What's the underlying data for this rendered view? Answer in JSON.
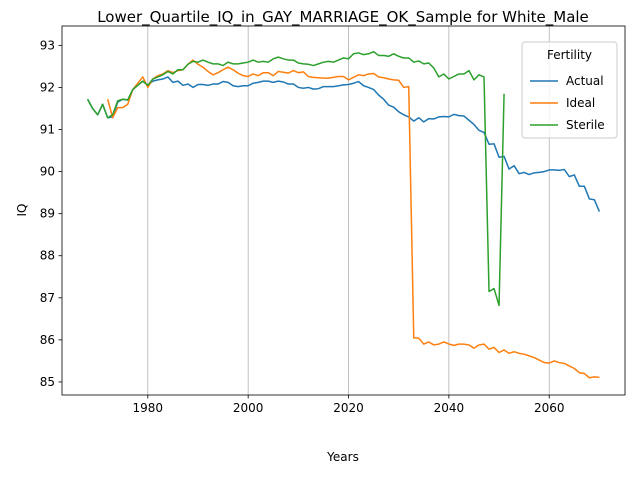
{
  "chart_data": {
    "type": "line",
    "title": "Lower_Quartile_IQ_in_GAY_MARRIAGE_OK_Sample for White_Male",
    "x_label": "Years",
    "y_label": "IQ",
    "x": [
      1968,
      1969,
      1970,
      1971,
      1972,
      1973,
      1974,
      1975,
      1976,
      1977,
      1978,
      1979,
      1980,
      1981,
      1982,
      1983,
      1984,
      1985,
      1986,
      1987,
      1988,
      1989,
      1990,
      1991,
      1992,
      1993,
      1994,
      1995,
      1996,
      1997,
      1998,
      1999,
      2000,
      2001,
      2002,
      2003,
      2004,
      2005,
      2006,
      2007,
      2008,
      2009,
      2010,
      2011,
      2012,
      2013,
      2014,
      2015,
      2016,
      2017,
      2018,
      2019,
      2020,
      2021,
      2022,
      2023,
      2024,
      2025,
      2026,
      2027,
      2028,
      2029,
      2030,
      2031,
      2032,
      2033,
      2034,
      2035,
      2036,
      2037,
      2038,
      2039,
      2040,
      2041,
      2042,
      2043,
      2044,
      2045,
      2046,
      2047,
      2048,
      2049,
      2050,
      2051,
      2052,
      2053,
      2054,
      2055,
      2056,
      2057,
      2058,
      2059,
      2060,
      2061,
      2062,
      2063,
      2064,
      2065,
      2066,
      2067,
      2068,
      2069,
      2070
    ],
    "series": [
      {
        "name": "Actual",
        "color": "#1f77b4",
        "values": [
          91.72,
          91.5,
          91.35,
          91.6,
          91.28,
          91.3,
          91.65,
          91.72,
          91.7,
          91.95,
          92.05,
          92.15,
          92.05,
          92.15,
          92.18,
          92.2,
          92.25,
          92.12,
          92.15,
          92.05,
          92.08,
          92.0,
          92.07,
          92.07,
          92.05,
          92.08,
          92.08,
          92.14,
          92.12,
          92.04,
          92.02,
          92.04,
          92.04,
          92.1,
          92.12,
          92.15,
          92.15,
          92.12,
          92.15,
          92.13,
          92.08,
          92.08,
          92.0,
          91.98,
          92.0,
          91.96,
          91.97,
          92.02,
          92.02,
          92.02,
          92.04,
          92.06,
          92.07,
          92.1,
          92.14,
          92.04,
          92.0,
          91.95,
          91.82,
          91.72,
          91.58,
          91.53,
          91.42,
          91.35,
          91.3,
          91.2,
          91.28,
          91.18,
          91.26,
          91.25,
          91.3,
          91.31,
          91.3,
          91.36,
          91.33,
          91.32,
          91.22,
          91.12,
          90.98,
          90.93,
          90.65,
          90.66,
          90.34,
          90.36,
          90.06,
          90.14,
          89.95,
          89.98,
          89.93,
          89.97,
          89.98,
          90.0,
          90.04,
          90.04,
          90.03,
          90.05,
          89.88,
          89.92,
          89.65,
          89.65,
          89.35,
          89.33,
          89.05
        ]
      },
      {
        "name": "Ideal",
        "color": "#ff7f0e",
        "values": [
          null,
          null,
          null,
          null,
          91.72,
          91.28,
          91.52,
          91.52,
          91.6,
          91.95,
          92.1,
          92.25,
          92.0,
          92.2,
          92.28,
          92.32,
          92.4,
          92.35,
          92.4,
          92.42,
          92.55,
          92.65,
          92.55,
          92.48,
          92.38,
          92.3,
          92.35,
          92.42,
          92.48,
          92.42,
          92.34,
          92.28,
          92.26,
          92.32,
          92.28,
          92.35,
          92.35,
          92.28,
          92.38,
          92.36,
          92.34,
          92.4,
          92.35,
          92.37,
          92.26,
          92.24,
          92.23,
          92.22,
          92.22,
          92.24,
          92.26,
          92.26,
          92.18,
          92.24,
          92.3,
          92.28,
          92.32,
          92.33,
          92.25,
          92.23,
          92.2,
          92.18,
          92.17,
          92.0,
          92.02,
          86.05,
          86.04,
          85.9,
          85.95,
          85.88,
          85.9,
          85.95,
          85.9,
          85.87,
          85.9,
          85.9,
          85.88,
          85.8,
          85.88,
          85.9,
          85.78,
          85.82,
          85.7,
          85.76,
          85.68,
          85.72,
          85.68,
          85.66,
          85.62,
          85.58,
          85.52,
          85.46,
          85.45,
          85.5,
          85.46,
          85.44,
          85.38,
          85.32,
          85.22,
          85.2,
          85.1,
          85.12,
          85.11
        ]
      },
      {
        "name": "Sterile",
        "color": "#2ca02c",
        "values": [
          91.72,
          91.5,
          91.35,
          91.6,
          91.28,
          91.35,
          91.68,
          91.72,
          91.7,
          91.95,
          92.05,
          92.15,
          92.05,
          92.2,
          92.25,
          92.3,
          92.38,
          92.32,
          92.42,
          92.42,
          92.55,
          92.62,
          92.6,
          92.65,
          92.6,
          92.56,
          92.56,
          92.52,
          92.6,
          92.56,
          92.56,
          92.58,
          92.6,
          92.65,
          92.6,
          92.62,
          92.6,
          92.68,
          92.72,
          92.68,
          92.65,
          92.65,
          92.58,
          92.56,
          92.55,
          92.52,
          92.56,
          92.6,
          92.62,
          92.6,
          92.65,
          92.7,
          92.68,
          92.8,
          92.82,
          92.78,
          92.8,
          92.85,
          92.76,
          92.76,
          92.74,
          92.8,
          92.74,
          92.7,
          92.7,
          92.6,
          92.63,
          92.56,
          92.58,
          92.46,
          92.25,
          92.32,
          92.2,
          92.26,
          92.32,
          92.32,
          92.4,
          92.18,
          92.3,
          92.25,
          87.15,
          87.22,
          86.82,
          91.85,
          null,
          null,
          null,
          null,
          null,
          null,
          null,
          null,
          null,
          null,
          null,
          null,
          null,
          null,
          null,
          null,
          null,
          null,
          null
        ]
      }
    ],
    "legend_title": "Fertility",
    "legend": "upper right",
    "xlim": [
      1962.9,
      2075.1
    ],
    "ylim": [
      84.69,
      93.46
    ],
    "xticks": [
      1980,
      2000,
      2020,
      2040,
      2060
    ],
    "yticks": [
      85,
      86,
      87,
      88,
      89,
      90,
      91,
      92,
      93
    ],
    "grid": "x"
  }
}
